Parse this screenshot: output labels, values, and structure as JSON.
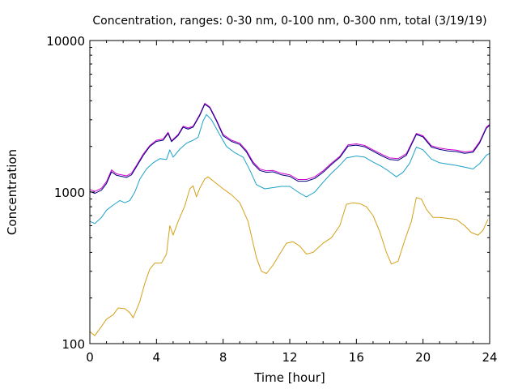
{
  "chart_data": {
    "type": "line",
    "title": "Concentration, ranges: 0-30 nm, 0-100 nm, 0-300 nm, total (3/19/19)",
    "xlabel": "Time [hour]",
    "ylabel": "Concentration",
    "xlim": [
      0,
      24
    ],
    "ylim": [
      100,
      10000
    ],
    "yscale": "log",
    "grid": false,
    "legend": "none",
    "x_ticks": [
      0,
      4,
      8,
      12,
      16,
      20,
      24
    ],
    "x_tick_labels": [
      "0",
      "4",
      "8",
      "12",
      "16",
      "20",
      "24"
    ],
    "y_ticks": [
      100,
      1000,
      10000
    ],
    "y_tick_labels": [
      "100",
      "1000",
      "10000"
    ],
    "series": [
      {
        "color": "#d4a017",
        "points": [
          [
            0,
            120
          ],
          [
            0.3,
            113
          ],
          [
            0.7,
            130
          ],
          [
            1,
            145
          ],
          [
            1.4,
            155
          ],
          [
            1.7,
            172
          ],
          [
            2.1,
            170
          ],
          [
            2.4,
            160
          ],
          [
            2.6,
            148
          ],
          [
            3,
            190
          ],
          [
            3.3,
            250
          ],
          [
            3.6,
            310
          ],
          [
            3.9,
            340
          ],
          [
            4.3,
            340
          ],
          [
            4.6,
            390
          ],
          [
            4.8,
            600
          ],
          [
            5,
            520
          ],
          [
            5.3,
            640
          ],
          [
            5.7,
            810
          ],
          [
            6,
            1050
          ],
          [
            6.2,
            1100
          ],
          [
            6.4,
            930
          ],
          [
            6.6,
            1060
          ],
          [
            6.9,
            1220
          ],
          [
            7.1,
            1260
          ],
          [
            7.5,
            1160
          ],
          [
            8,
            1050
          ],
          [
            8.5,
            960
          ],
          [
            9,
            850
          ],
          [
            9.5,
            640
          ],
          [
            10,
            370
          ],
          [
            10.3,
            300
          ],
          [
            10.6,
            290
          ],
          [
            11,
            330
          ],
          [
            11.4,
            390
          ],
          [
            11.8,
            460
          ],
          [
            12.2,
            470
          ],
          [
            12.6,
            440
          ],
          [
            13,
            390
          ],
          [
            13.4,
            400
          ],
          [
            14,
            460
          ],
          [
            14.5,
            500
          ],
          [
            15,
            600
          ],
          [
            15.4,
            830
          ],
          [
            15.8,
            850
          ],
          [
            16.2,
            840
          ],
          [
            16.6,
            800
          ],
          [
            17,
            700
          ],
          [
            17.4,
            550
          ],
          [
            17.8,
            400
          ],
          [
            18.1,
            335
          ],
          [
            18.5,
            350
          ],
          [
            18.9,
            480
          ],
          [
            19.3,
            640
          ],
          [
            19.6,
            920
          ],
          [
            19.9,
            900
          ],
          [
            20.2,
            770
          ],
          [
            20.6,
            680
          ],
          [
            21,
            680
          ],
          [
            21.5,
            670
          ],
          [
            22,
            660
          ],
          [
            22.5,
            600
          ],
          [
            22.9,
            540
          ],
          [
            23.3,
            520
          ],
          [
            23.6,
            560
          ],
          [
            23.9,
            660
          ]
        ]
      },
      {
        "color": "#1ba1c9",
        "points": [
          [
            0,
            640
          ],
          [
            0.3,
            620
          ],
          [
            0.7,
            680
          ],
          [
            1,
            760
          ],
          [
            1.4,
            820
          ],
          [
            1.8,
            880
          ],
          [
            2.1,
            850
          ],
          [
            2.4,
            880
          ],
          [
            2.7,
            1000
          ],
          [
            3,
            1220
          ],
          [
            3.4,
            1420
          ],
          [
            3.8,
            1560
          ],
          [
            4.2,
            1660
          ],
          [
            4.6,
            1640
          ],
          [
            4.8,
            1900
          ],
          [
            5,
            1700
          ],
          [
            5.4,
            1920
          ],
          [
            5.8,
            2100
          ],
          [
            6.2,
            2200
          ],
          [
            6.5,
            2300
          ],
          [
            6.8,
            2950
          ],
          [
            7,
            3250
          ],
          [
            7.3,
            3000
          ],
          [
            7.7,
            2500
          ],
          [
            8.2,
            2000
          ],
          [
            8.7,
            1820
          ],
          [
            9.2,
            1700
          ],
          [
            9.6,
            1400
          ],
          [
            10,
            1120
          ],
          [
            10.5,
            1050
          ],
          [
            11,
            1070
          ],
          [
            11.5,
            1090
          ],
          [
            12,
            1090
          ],
          [
            12.5,
            1000
          ],
          [
            13,
            930
          ],
          [
            13.5,
            1000
          ],
          [
            14,
            1160
          ],
          [
            14.5,
            1330
          ],
          [
            15,
            1500
          ],
          [
            15.4,
            1680
          ],
          [
            16,
            1730
          ],
          [
            16.5,
            1700
          ],
          [
            17,
            1580
          ],
          [
            17.5,
            1480
          ],
          [
            18,
            1360
          ],
          [
            18.4,
            1260
          ],
          [
            18.8,
            1350
          ],
          [
            19.2,
            1550
          ],
          [
            19.6,
            1980
          ],
          [
            20,
            1900
          ],
          [
            20.5,
            1650
          ],
          [
            21,
            1560
          ],
          [
            21.5,
            1530
          ],
          [
            22,
            1500
          ],
          [
            22.5,
            1460
          ],
          [
            23,
            1420
          ],
          [
            23.4,
            1540
          ],
          [
            23.8,
            1750
          ],
          [
            24,
            1800
          ]
        ]
      },
      {
        "color": "#cc00cc",
        "points": [
          [
            0,
            1040
          ],
          [
            0.3,
            1010
          ],
          [
            0.7,
            1060
          ],
          [
            1,
            1170
          ],
          [
            1.3,
            1400
          ],
          [
            1.6,
            1320
          ],
          [
            1.9,
            1300
          ],
          [
            2.2,
            1280
          ],
          [
            2.5,
            1330
          ],
          [
            2.8,
            1500
          ],
          [
            3.2,
            1780
          ],
          [
            3.6,
            2030
          ],
          [
            4,
            2200
          ],
          [
            4.4,
            2240
          ],
          [
            4.7,
            2480
          ],
          [
            4.9,
            2180
          ],
          [
            5.3,
            2400
          ],
          [
            5.6,
            2720
          ],
          [
            5.9,
            2650
          ],
          [
            6.2,
            2720
          ],
          [
            6.6,
            3250
          ],
          [
            6.9,
            3850
          ],
          [
            7.2,
            3650
          ],
          [
            7.6,
            3000
          ],
          [
            8,
            2400
          ],
          [
            8.5,
            2200
          ],
          [
            9,
            2100
          ],
          [
            9.4,
            1880
          ],
          [
            9.8,
            1580
          ],
          [
            10.2,
            1420
          ],
          [
            10.6,
            1380
          ],
          [
            11,
            1390
          ],
          [
            11.5,
            1330
          ],
          [
            12,
            1300
          ],
          [
            12.5,
            1210
          ],
          [
            13,
            1210
          ],
          [
            13.5,
            1260
          ],
          [
            14,
            1380
          ],
          [
            14.5,
            1550
          ],
          [
            15,
            1720
          ],
          [
            15.5,
            2050
          ],
          [
            16,
            2080
          ],
          [
            16.5,
            2030
          ],
          [
            17,
            1900
          ],
          [
            17.5,
            1780
          ],
          [
            18,
            1680
          ],
          [
            18.5,
            1660
          ],
          [
            19,
            1790
          ],
          [
            19.6,
            2440
          ],
          [
            20,
            2350
          ],
          [
            20.5,
            2020
          ],
          [
            21,
            1950
          ],
          [
            21.5,
            1910
          ],
          [
            22,
            1890
          ],
          [
            22.5,
            1840
          ],
          [
            23,
            1870
          ],
          [
            23.4,
            2150
          ],
          [
            23.8,
            2680
          ],
          [
            24,
            2800
          ]
        ]
      },
      {
        "color": "#000080",
        "points": [
          [
            0,
            1010
          ],
          [
            0.3,
            980
          ],
          [
            0.7,
            1030
          ],
          [
            1,
            1140
          ],
          [
            1.3,
            1360
          ],
          [
            1.6,
            1290
          ],
          [
            1.9,
            1270
          ],
          [
            2.2,
            1250
          ],
          [
            2.5,
            1300
          ],
          [
            2.8,
            1470
          ],
          [
            3.2,
            1740
          ],
          [
            3.6,
            2000
          ],
          [
            4,
            2160
          ],
          [
            4.4,
            2200
          ],
          [
            4.7,
            2440
          ],
          [
            4.9,
            2150
          ],
          [
            5.3,
            2360
          ],
          [
            5.6,
            2680
          ],
          [
            5.9,
            2600
          ],
          [
            6.2,
            2680
          ],
          [
            6.6,
            3200
          ],
          [
            6.9,
            3800
          ],
          [
            7.2,
            3600
          ],
          [
            7.6,
            2950
          ],
          [
            8,
            2350
          ],
          [
            8.5,
            2160
          ],
          [
            9,
            2060
          ],
          [
            9.4,
            1840
          ],
          [
            9.8,
            1540
          ],
          [
            10.2,
            1390
          ],
          [
            10.6,
            1350
          ],
          [
            11,
            1360
          ],
          [
            11.5,
            1300
          ],
          [
            12,
            1270
          ],
          [
            12.5,
            1180
          ],
          [
            13,
            1180
          ],
          [
            13.5,
            1230
          ],
          [
            14,
            1350
          ],
          [
            14.5,
            1520
          ],
          [
            15,
            1690
          ],
          [
            15.5,
            2010
          ],
          [
            16,
            2040
          ],
          [
            16.5,
            1990
          ],
          [
            17,
            1860
          ],
          [
            17.5,
            1740
          ],
          [
            18,
            1640
          ],
          [
            18.5,
            1620
          ],
          [
            19,
            1750
          ],
          [
            19.6,
            2400
          ],
          [
            20,
            2310
          ],
          [
            20.5,
            1980
          ],
          [
            21,
            1910
          ],
          [
            21.5,
            1870
          ],
          [
            22,
            1850
          ],
          [
            22.5,
            1800
          ],
          [
            23,
            1830
          ],
          [
            23.4,
            2110
          ],
          [
            23.8,
            2640
          ],
          [
            24,
            2760
          ]
        ]
      }
    ]
  }
}
